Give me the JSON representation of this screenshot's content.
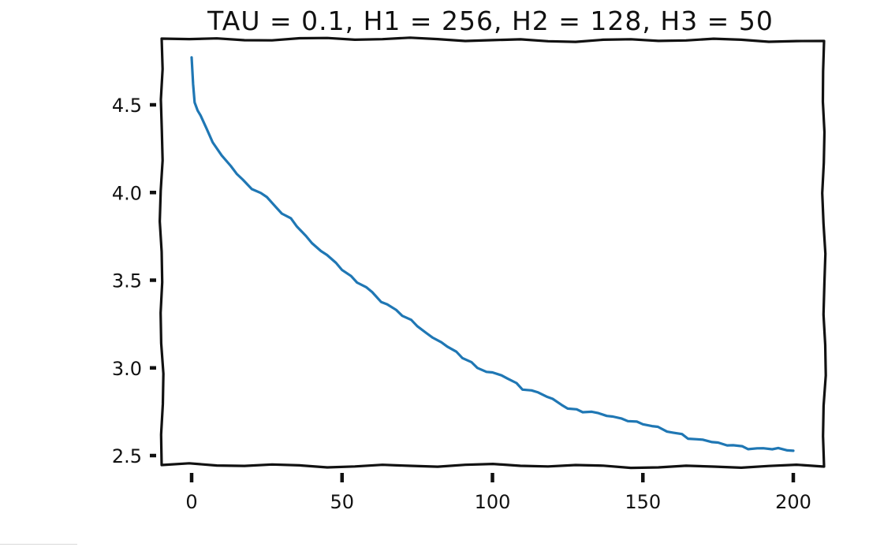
{
  "chart_data": {
    "type": "line",
    "title": "TAU = 0.1, H1 = 256, H2 = 128, H3 = 50",
    "xlabel": "",
    "ylabel": "",
    "xlim": [
      -10,
      210
    ],
    "ylim": [
      2.46,
      4.85
    ],
    "xticks": [
      0,
      50,
      100,
      150,
      200
    ],
    "xtick_labels": [
      "0",
      "50",
      "100",
      "150",
      "200"
    ],
    "yticks": [
      2.5,
      3.0,
      3.5,
      4.0,
      4.5
    ],
    "ytick_labels": [
      "2.5",
      "3.0",
      "3.5",
      "4.0",
      "4.5"
    ],
    "grid": false,
    "style": "xkcd",
    "series": [
      {
        "color": "#1f77b4",
        "x": [
          0,
          0.5,
          1,
          2,
          3,
          5,
          7,
          10,
          13,
          15,
          17,
          20,
          23,
          25,
          28,
          30,
          33,
          35,
          38,
          40,
          43,
          45,
          48,
          50,
          53,
          55,
          58,
          60,
          63,
          65,
          68,
          70,
          73,
          75,
          78,
          80,
          83,
          85,
          88,
          90,
          93,
          95,
          98,
          100,
          103,
          105,
          108,
          110,
          113,
          115,
          118,
          120,
          123,
          125,
          128,
          130,
          133,
          135,
          138,
          140,
          143,
          145,
          148,
          150,
          153,
          155,
          158,
          160,
          163,
          165,
          168,
          170,
          173,
          175,
          178,
          180,
          183,
          185,
          188,
          190,
          193,
          195,
          198,
          200
        ],
        "y": [
          4.77,
          4.62,
          4.51,
          4.47,
          4.44,
          4.36,
          4.29,
          4.21,
          4.15,
          4.11,
          4.07,
          4.02,
          4.0,
          3.97,
          3.92,
          3.88,
          3.85,
          3.81,
          3.75,
          3.71,
          3.67,
          3.64,
          3.6,
          3.56,
          3.52,
          3.49,
          3.46,
          3.43,
          3.38,
          3.36,
          3.33,
          3.3,
          3.27,
          3.24,
          3.2,
          3.17,
          3.15,
          3.12,
          3.09,
          3.06,
          3.03,
          3.0,
          2.98,
          2.97,
          2.96,
          2.94,
          2.91,
          2.88,
          2.87,
          2.86,
          2.84,
          2.82,
          2.79,
          2.77,
          2.76,
          2.75,
          2.75,
          2.74,
          2.73,
          2.72,
          2.71,
          2.7,
          2.69,
          2.68,
          2.67,
          2.66,
          2.64,
          2.63,
          2.62,
          2.6,
          2.59,
          2.59,
          2.58,
          2.57,
          2.56,
          2.56,
          2.55,
          2.54,
          2.54,
          2.54,
          2.54,
          2.54,
          2.53,
          2.53
        ]
      }
    ]
  }
}
